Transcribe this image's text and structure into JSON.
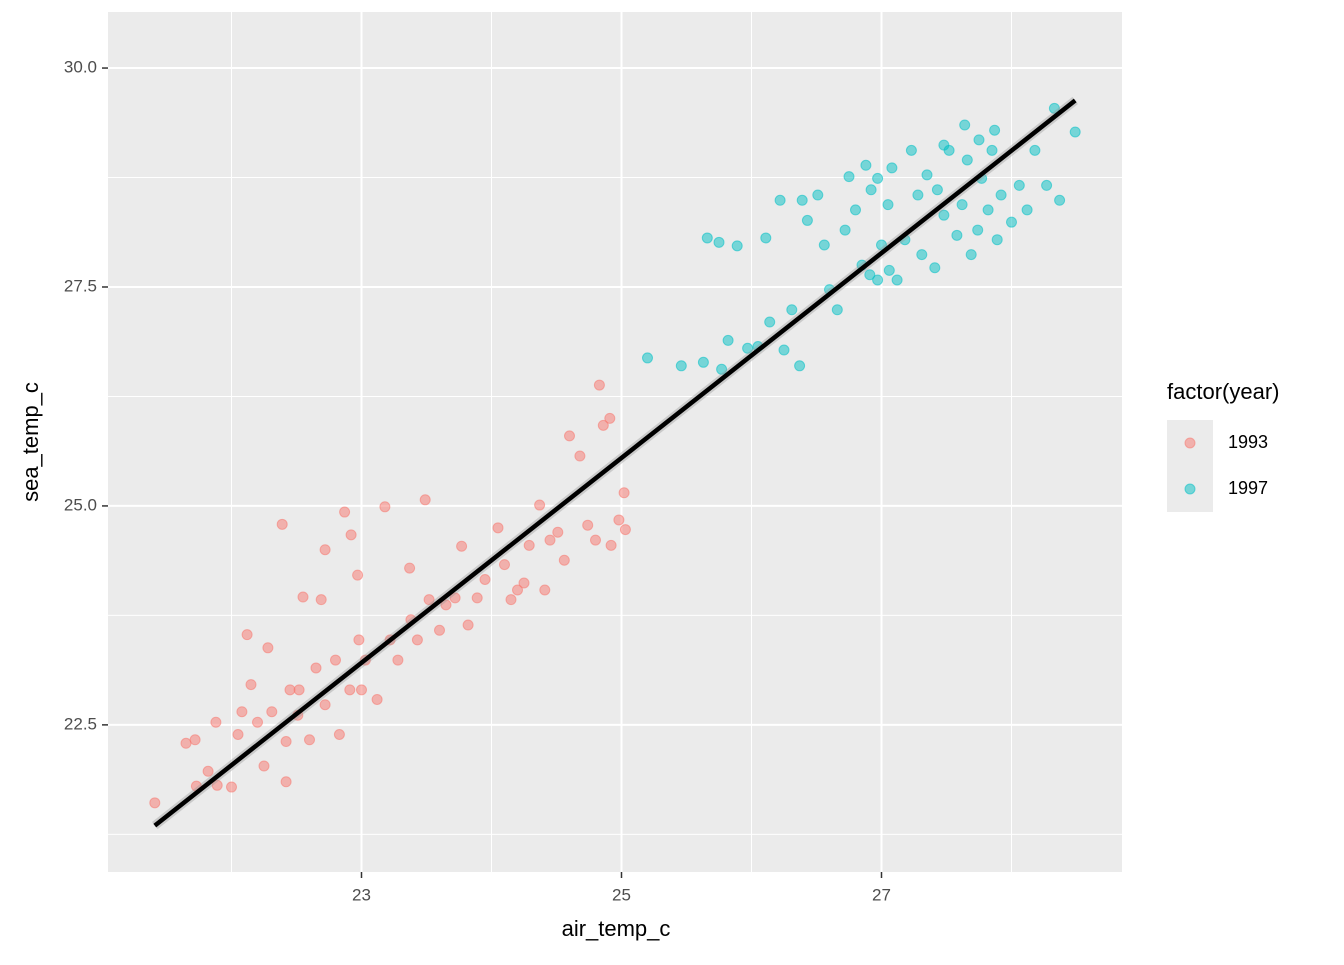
{
  "chart_data": {
    "type": "scatter",
    "x_label": "air_temp_c",
    "y_label": "sea_temp_c",
    "legend_title": "factor(year)",
    "legend": "right",
    "grid": true,
    "xlim": [
      21.05,
      28.85
    ],
    "ylim": [
      20.82,
      30.64
    ],
    "xticks": [
      23,
      25,
      27
    ],
    "minor_xticks": [
      22,
      24,
      26,
      28
    ],
    "yticks": [
      22.5,
      {
        "value": 25,
        "label": "25.0"
      },
      27.5,
      {
        "value": 30,
        "label": "30.0"
      }
    ],
    "minor_yticks": [
      21.25,
      23.75,
      26.25,
      28.75
    ],
    "series": [
      {
        "name": "1993",
        "color": "#F8766D",
        "x": [
          21.41,
          21.65,
          21.72,
          21.73,
          21.82,
          21.88,
          21.89,
          22.0,
          22.05,
          22.08,
          22.12,
          22.15,
          22.2,
          22.25,
          22.28,
          22.31,
          22.39,
          22.42,
          22.42,
          22.45,
          22.51,
          22.52,
          22.55,
          22.6,
          22.65,
          22.69,
          22.72,
          22.72,
          22.8,
          22.83,
          22.87,
          22.91,
          22.92,
          22.97,
          22.98,
          23.0,
          23.03,
          23.12,
          23.18,
          23.22,
          23.28,
          23.37,
          23.38,
          23.43,
          23.49,
          23.52,
          23.6,
          23.65,
          23.72,
          23.77,
          23.82,
          23.89,
          23.95,
          24.05,
          24.1,
          24.15,
          24.2,
          24.25,
          24.29,
          24.37,
          24.41,
          24.45,
          24.51,
          24.56,
          24.6,
          24.68,
          24.74,
          24.8,
          24.83,
          24.86,
          24.91,
          24.92,
          24.98,
          25.02,
          25.03
        ],
        "values": [
          21.61,
          22.29,
          22.33,
          21.8,
          21.97,
          22.53,
          21.81,
          21.79,
          22.39,
          22.65,
          23.53,
          22.96,
          22.53,
          22.03,
          23.38,
          22.65,
          24.79,
          22.31,
          21.85,
          22.9,
          22.61,
          22.9,
          23.96,
          22.33,
          23.15,
          23.93,
          24.5,
          22.73,
          23.24,
          22.39,
          24.93,
          22.9,
          24.67,
          24.21,
          23.47,
          22.9,
          23.24,
          22.79,
          24.99,
          23.47,
          23.24,
          24.29,
          23.7,
          23.47,
          25.07,
          23.93,
          23.58,
          23.87,
          23.95,
          24.54,
          23.64,
          23.95,
          24.16,
          24.75,
          24.33,
          23.93,
          24.04,
          24.12,
          24.55,
          25.01,
          24.04,
          24.61,
          24.7,
          24.38,
          25.8,
          25.57,
          24.78,
          24.61,
          26.38,
          25.92,
          26.0,
          24.55,
          24.84,
          25.15,
          24.73
        ]
      },
      {
        "name": "1997",
        "color": "#00BFC4",
        "x": [
          25.2,
          25.46,
          25.63,
          25.66,
          25.75,
          25.77,
          25.82,
          25.89,
          25.97,
          26.05,
          26.11,
          26.14,
          26.22,
          26.25,
          26.31,
          26.37,
          26.39,
          26.43,
          26.51,
          26.56,
          26.6,
          26.66,
          26.72,
          26.75,
          26.8,
          26.85,
          26.88,
          26.92,
          26.97,
          27.0,
          27.05,
          27.08,
          27.12,
          27.18,
          27.23,
          27.28,
          27.31,
          27.35,
          27.41,
          27.43,
          27.48,
          27.52,
          27.58,
          27.62,
          27.66,
          27.69,
          27.74,
          27.77,
          27.82,
          27.85,
          27.89,
          27.92,
          28.0,
          28.06,
          28.12,
          28.18,
          28.27,
          28.33,
          28.37,
          28.49,
          27.75,
          27.64,
          26.97,
          27.48,
          27.87,
          27.06,
          26.91
        ],
        "values": [
          26.69,
          26.6,
          26.64,
          28.06,
          28.01,
          26.56,
          26.89,
          27.97,
          26.8,
          26.82,
          28.06,
          27.1,
          28.49,
          26.78,
          27.24,
          26.6,
          28.49,
          28.26,
          28.55,
          27.98,
          27.47,
          27.24,
          28.15,
          28.76,
          28.38,
          27.75,
          28.89,
          28.61,
          27.58,
          27.98,
          28.44,
          28.86,
          27.58,
          28.04,
          29.06,
          28.55,
          27.87,
          28.78,
          27.72,
          28.61,
          28.32,
          29.06,
          28.09,
          28.44,
          28.95,
          27.87,
          28.15,
          28.74,
          28.38,
          29.06,
          28.04,
          28.55,
          28.24,
          28.66,
          28.38,
          29.06,
          28.66,
          29.54,
          28.49,
          29.27,
          29.18,
          29.35,
          28.74,
          29.12,
          29.29,
          27.69,
          27.64
        ]
      }
    ],
    "trend_line": {
      "color": "#000000",
      "x": [
        21.41,
        28.49
      ],
      "values": [
        21.35,
        29.63
      ]
    }
  }
}
